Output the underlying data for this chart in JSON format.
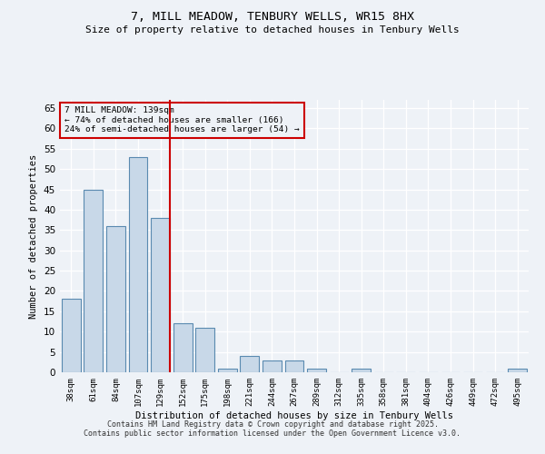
{
  "title_line1": "7, MILL MEADOW, TENBURY WELLS, WR15 8HX",
  "title_line2": "Size of property relative to detached houses in Tenbury Wells",
  "xlabel": "Distribution of detached houses by size in Tenbury Wells",
  "ylabel": "Number of detached properties",
  "categories": [
    "38sqm",
    "61sqm",
    "84sqm",
    "107sqm",
    "129sqm",
    "152sqm",
    "175sqm",
    "198sqm",
    "221sqm",
    "244sqm",
    "267sqm",
    "289sqm",
    "312sqm",
    "335sqm",
    "358sqm",
    "381sqm",
    "404sqm",
    "426sqm",
    "449sqm",
    "472sqm",
    "495sqm"
  ],
  "values": [
    18,
    45,
    36,
    53,
    38,
    12,
    11,
    1,
    4,
    3,
    3,
    1,
    0,
    1,
    0,
    0,
    0,
    0,
    0,
    0,
    1
  ],
  "bar_color": "#c8d8e8",
  "bar_edge_color": "#5a8ab0",
  "annotation_text": "7 MILL MEADOW: 139sqm\n← 74% of detached houses are smaller (166)\n24% of semi-detached houses are larger (54) →",
  "annotation_box_color": "#cc0000",
  "ylim": [
    0,
    67
  ],
  "yticks": [
    0,
    5,
    10,
    15,
    20,
    25,
    30,
    35,
    40,
    45,
    50,
    55,
    60,
    65
  ],
  "background_color": "#eef2f7",
  "grid_color": "#ffffff",
  "footer_line1": "Contains HM Land Registry data © Crown copyright and database right 2025.",
  "footer_line2": "Contains public sector information licensed under the Open Government Licence v3.0."
}
